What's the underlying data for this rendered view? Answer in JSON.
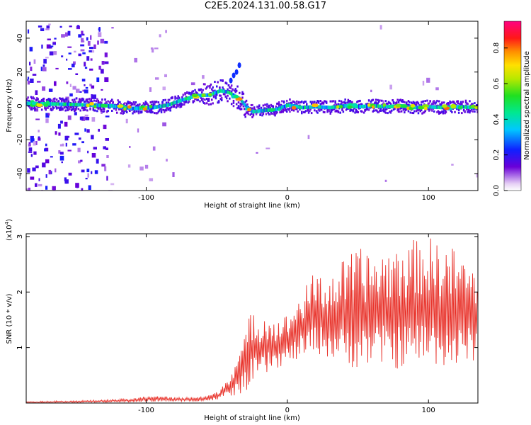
{
  "title": "C2E5.2024.131.00.58.G17",
  "chart_data": [
    {
      "type": "heatmap",
      "xlabel": "Height of straight line (km)",
      "ylabel": "Frequency (Hz)",
      "xlim": [
        -185,
        135
      ],
      "ylim": [
        -50,
        50
      ],
      "xticks": [
        -100,
        0,
        100
      ],
      "yticks": [
        -40,
        -20,
        0,
        20,
        40
      ],
      "colorbar": {
        "label": "Normalized spectral amplitude",
        "range": [
          0,
          0.95
        ],
        "ticks": [
          0.0,
          0.2,
          0.4,
          0.6,
          0.8
        ]
      },
      "ridge": {
        "x": [
          -185,
          -160,
          -140,
          -125,
          -110,
          -95,
          -85,
          -75,
          -65,
          -55,
          -48,
          -42,
          -38,
          -34,
          -30,
          -25,
          -20,
          -15,
          -10,
          -5,
          0,
          10,
          20,
          30,
          40,
          50,
          60,
          70,
          80,
          90,
          100,
          110,
          120,
          135
        ],
        "y": [
          1.5,
          1.0,
          0.5,
          0.0,
          -1.5,
          -1.0,
          0.5,
          3.5,
          6.0,
          6.5,
          9.0,
          8.0,
          6.0,
          4.0,
          0.0,
          -3.5,
          -3.0,
          -2.5,
          -2.5,
          -1.0,
          0.5,
          -1.0,
          -0.5,
          -1.0,
          0.0,
          -0.5,
          0.0,
          -0.5,
          0.0,
          -1.0,
          -0.5,
          -1.0,
          -0.5,
          -1.0
        ]
      }
    },
    {
      "type": "line",
      "xlabel": "Height of straight line (km)",
      "ylabel": "SNR (10 * v/v)",
      "scale_label": "(x10",
      "scale_exp": "4",
      "scale_close": ")",
      "xlim": [
        -185,
        135
      ],
      "ylim": [
        0,
        3.05
      ],
      "xticks": [
        -100,
        0,
        100
      ],
      "yticks": [
        1,
        2,
        3
      ],
      "color": "#e8322a",
      "envelope": {
        "x": [
          -185,
          -140,
          -110,
          -95,
          -80,
          -60,
          -50,
          -45,
          -40,
          -35,
          -30,
          -25,
          -20,
          -15,
          -10,
          0,
          10,
          20,
          30,
          40,
          50,
          60,
          80,
          100,
          120,
          135
        ],
        "peak": [
          0.03,
          0.05,
          0.08,
          0.15,
          0.1,
          0.12,
          0.2,
          0.35,
          0.6,
          0.9,
          1.2,
          1.8,
          1.6,
          1.7,
          1.5,
          1.6,
          2.0,
          2.4,
          2.3,
          2.6,
          2.8,
          2.7,
          2.9,
          3.0,
          2.8,
          2.4
        ],
        "trough": [
          0.0,
          0.01,
          0.02,
          0.02,
          0.03,
          0.03,
          0.05,
          0.1,
          0.1,
          0.15,
          0.2,
          0.3,
          0.4,
          0.5,
          0.6,
          0.7,
          0.8,
          0.9,
          0.8,
          0.7,
          0.6,
          0.7,
          0.6,
          0.7,
          0.6,
          0.8
        ]
      }
    }
  ]
}
